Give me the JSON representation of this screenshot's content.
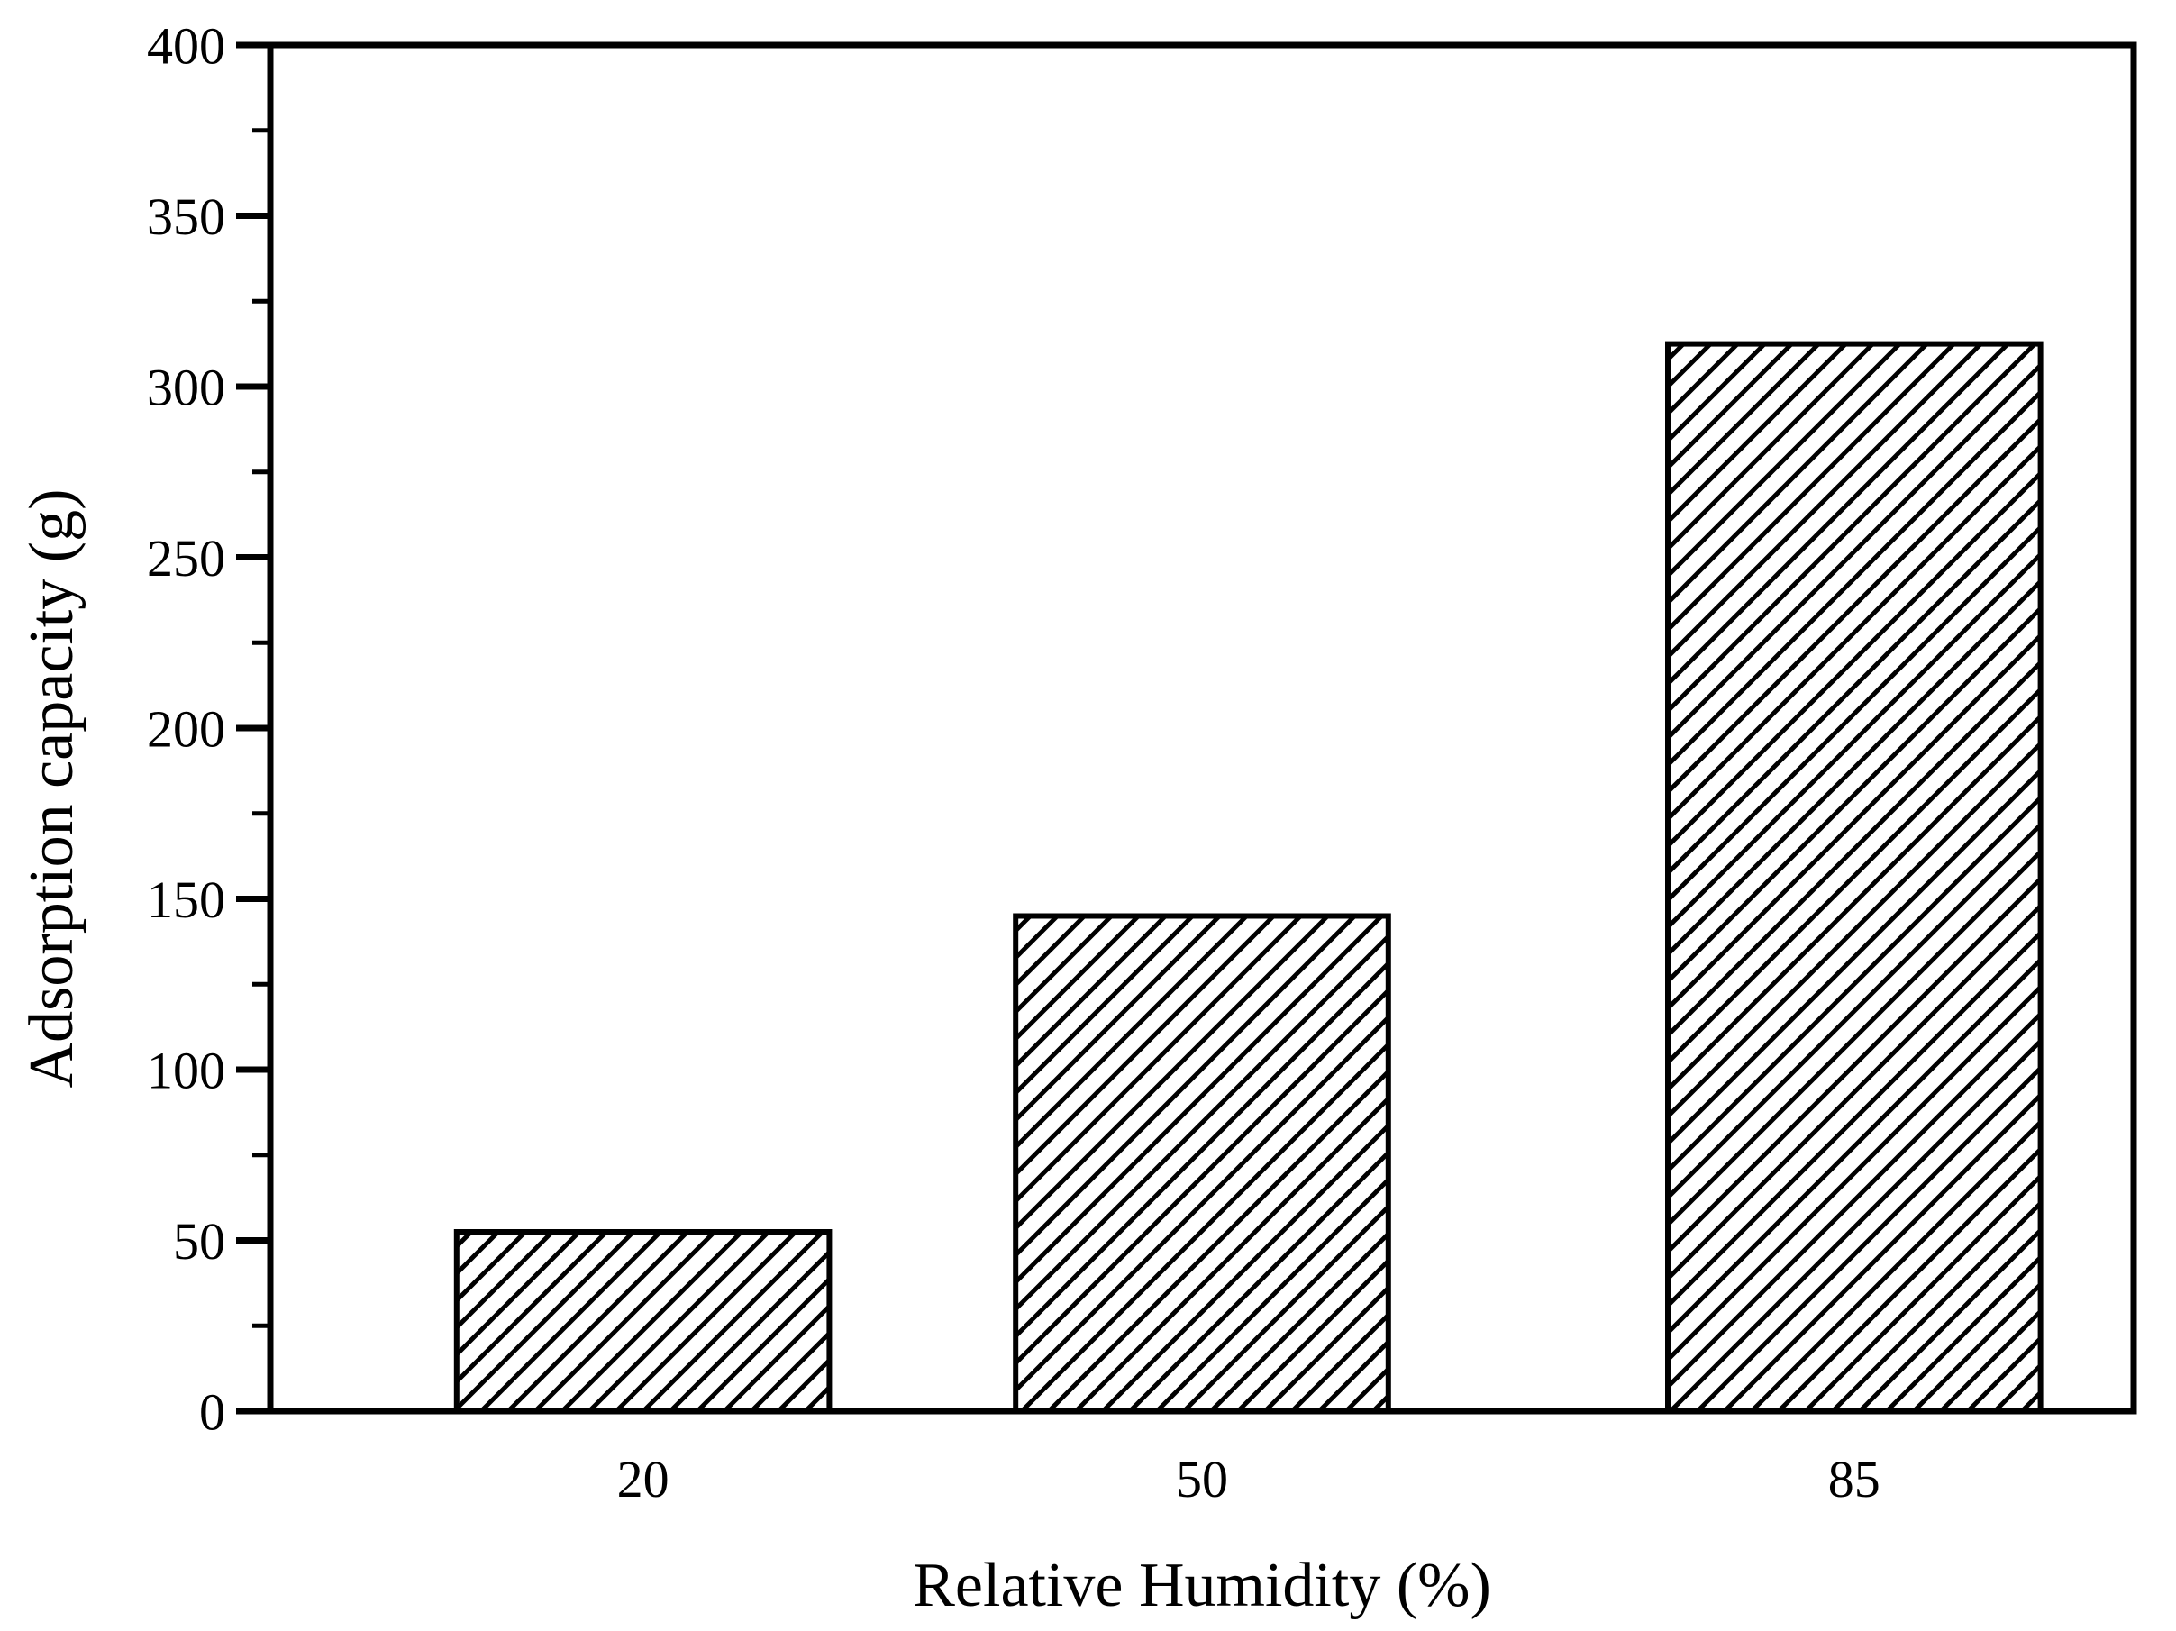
{
  "chart_data": {
    "type": "bar",
    "xlabel": "Relative Humidity (%)",
    "ylabel": "Adsorption capacity (g)",
    "categories": [
      "20",
      "50",
      "85"
    ],
    "x_positions": [
      20,
      50,
      85
    ],
    "values": [
      52.5,
      145,
      312.5
    ],
    "xlim": [
      0,
      100
    ],
    "ylim": [
      0,
      400
    ],
    "ytick_major_step": 50,
    "ytick_minor_step": 25,
    "ytick_labels": [
      "0",
      "50",
      "100",
      "150",
      "200",
      "250",
      "300",
      "350",
      "400"
    ],
    "bar_width_units": 20,
    "hatch_style": "forward-diagonal",
    "grid": false,
    "legend": "none",
    "colors": {
      "ink": "#000000",
      "bar_fill": "#ffffff",
      "background": "#ffffff"
    }
  }
}
